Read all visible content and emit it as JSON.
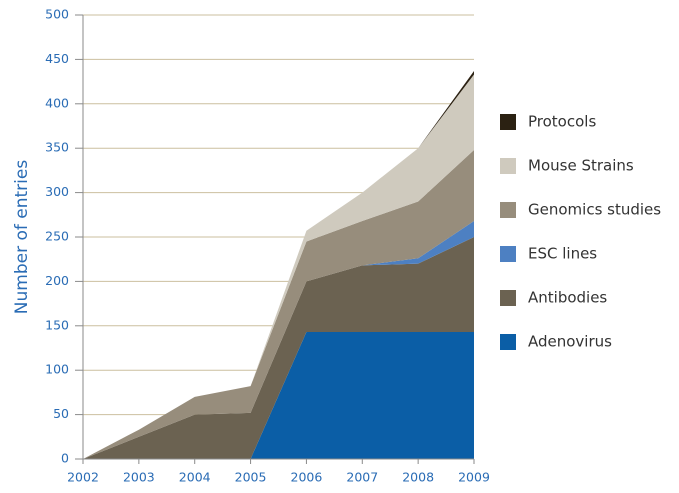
{
  "chart_data": {
    "type": "stacked_area",
    "y_label": "Number of entries",
    "x": [
      2002,
      2003,
      2004,
      2005,
      2006,
      2007,
      2008,
      2009
    ],
    "xlim": [
      2002,
      2009
    ],
    "xticks": [
      2002,
      2003,
      2004,
      2005,
      2006,
      2007,
      2008,
      2009
    ],
    "ylim": [
      0,
      500
    ],
    "yticks": [
      0,
      50,
      100,
      150,
      200,
      250,
      300,
      350,
      400,
      450,
      500
    ],
    "grid": true,
    "legend": "right",
    "series": [
      {
        "name": "Adenovirus",
        "color": "#0b5ea6",
        "values": [
          0,
          0,
          0,
          0,
          143,
          143,
          143,
          143
        ]
      },
      {
        "name": "Antibodies",
        "color": "#6b6251",
        "values": [
          0,
          25,
          50,
          52,
          57,
          75,
          77,
          107
        ]
      },
      {
        "name": "ESC lines",
        "color": "#4d80c2",
        "values": [
          0,
          0,
          0,
          0,
          0,
          0,
          6,
          18
        ]
      },
      {
        "name": "Genomics studies",
        "color": "#978d7c",
        "values": [
          0,
          8,
          20,
          30,
          45,
          50,
          64,
          80
        ]
      },
      {
        "name": "Mouse Strains",
        "color": "#cfcabe",
        "values": [
          0,
          0,
          0,
          0,
          12,
          32,
          60,
          85
        ]
      },
      {
        "name": "Protocols",
        "color": "#2b2112",
        "values": [
          0,
          0,
          0,
          0,
          0,
          0,
          0,
          4
        ]
      }
    ]
  }
}
